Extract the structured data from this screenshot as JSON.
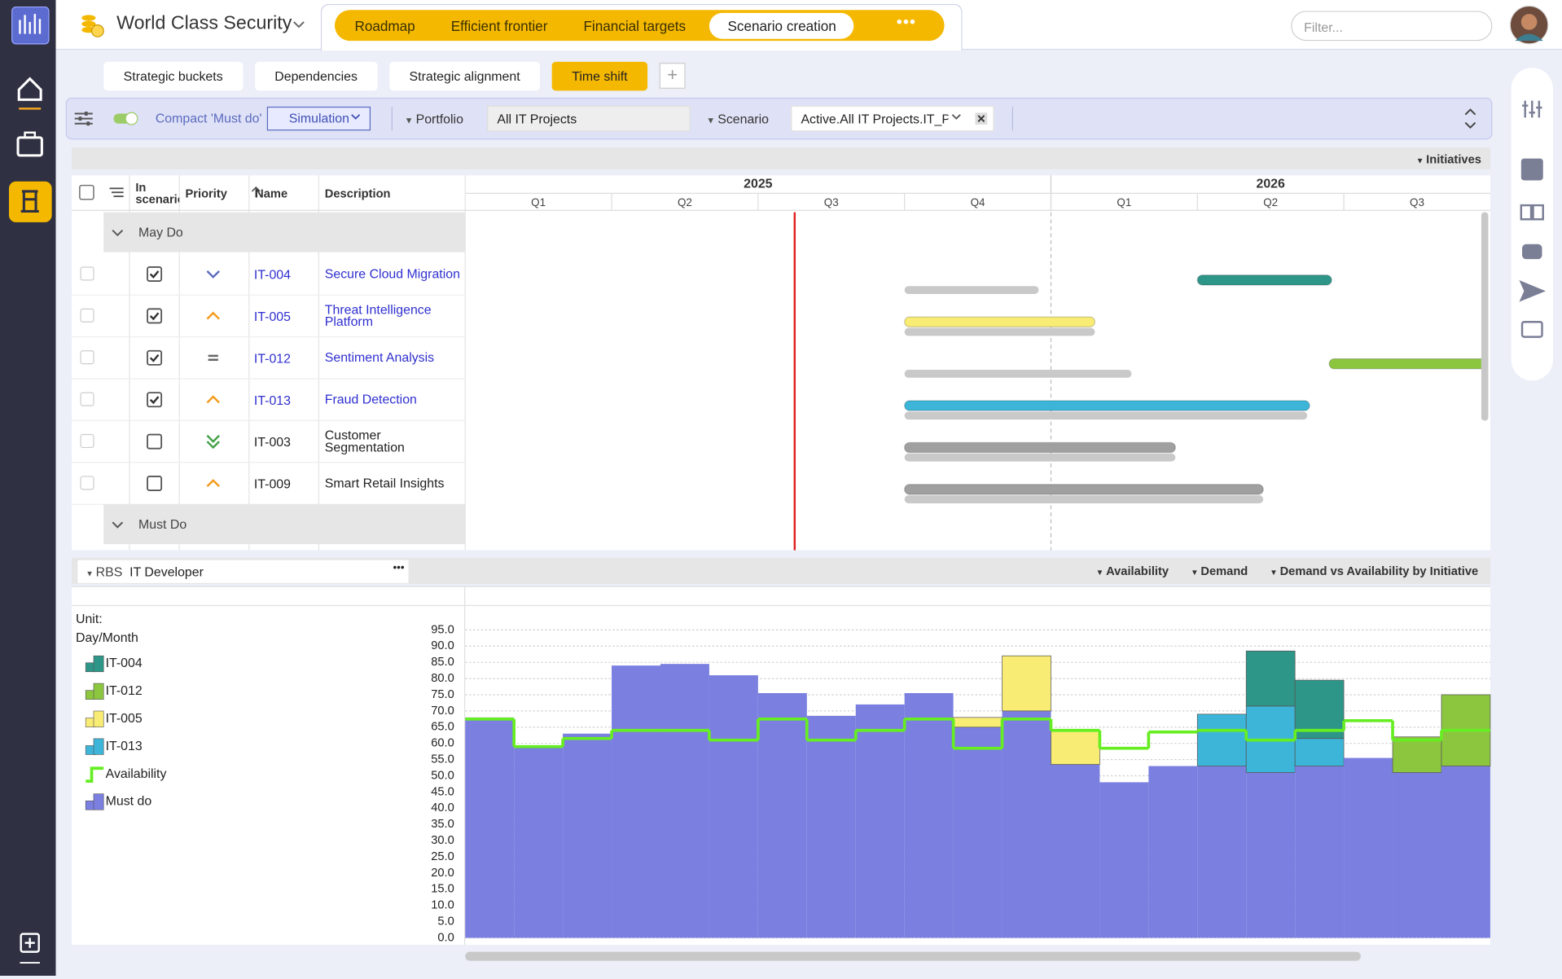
{
  "app": {
    "workspace": "World Class Security",
    "tabs": [
      "Roadmap",
      "Efficient frontier",
      "Financial targets",
      "Scenario creation"
    ],
    "active_tab": 3,
    "filter_placeholder": "Filter..."
  },
  "subtabs": [
    "Strategic buckets",
    "Dependencies",
    "Strategic alignment",
    "Time shift"
  ],
  "active_subtab": 3,
  "toolbar": {
    "compact": "Compact 'Must do'",
    "mode": "Simulation",
    "portfolio_label": "Portfolio",
    "portfolio": "All IT Projects",
    "scenario_label": "Scenario",
    "scenario": "Active.All IT Projects.IT_PM"
  },
  "gantt": {
    "view": "Initiatives",
    "columns": [
      "In scenario",
      "Priority",
      "Name",
      "Description"
    ],
    "years": [
      "2025",
      "2026"
    ],
    "quarters": [
      "Q1",
      "Q2",
      "Q3",
      "Q4",
      "Q1",
      "Q2",
      "Q3"
    ],
    "xlim": [
      0,
      21
    ],
    "today": 6.75,
    "groups": [
      {
        "name": "May Do",
        "rows": [
          {
            "id": "IT-004",
            "description": "Secure Cloud Migration",
            "in_scenario": true,
            "bar": [
              15,
              17.75
            ],
            "baseline": [
              9,
              11.75
            ],
            "color": "#2e9688"
          },
          {
            "id": "IT-005",
            "description": "Threat Intelligence Platform",
            "in_scenario": true,
            "bar": [
              9,
              12.9
            ],
            "baseline": [
              9,
              12.9
            ],
            "color": "#f8ec74"
          },
          {
            "id": "IT-012",
            "description": "Sentiment Analysis",
            "in_scenario": true,
            "bar": [
              17.7,
              21.5
            ],
            "baseline": [
              9,
              13.65
            ],
            "color": "#8cc63f"
          },
          {
            "id": "IT-013",
            "description": "Fraud Detection",
            "in_scenario": true,
            "bar": [
              9,
              17.3
            ],
            "baseline": [
              9,
              17.25
            ],
            "color": "#3db5d8"
          },
          {
            "id": "IT-003",
            "description": "Customer Segmentation",
            "in_scenario": false,
            "bar": [
              9,
              14.55
            ],
            "baseline": [
              9,
              14.55
            ],
            "color": "#a0a0a0"
          },
          {
            "id": "IT-009",
            "description": "Smart Retail Insights",
            "in_scenario": false,
            "bar": [
              9,
              16.35
            ],
            "baseline": [
              9,
              16.35
            ],
            "color": "#a0a0a0"
          }
        ]
      },
      {
        "name": "Must Do",
        "rows": []
      }
    ]
  },
  "resource_panel": {
    "rbs_label": "RBS",
    "rbs": "IT Developer",
    "views": [
      "Availability",
      "Demand",
      "Demand vs Availability by Initiative"
    ]
  },
  "chart_data": {
    "type": "bar",
    "stacked": true,
    "unit_label": "Unit:",
    "unit": "Day/Month",
    "categories": [
      null,
      null,
      null,
      null,
      null,
      null,
      null,
      null,
      null,
      null,
      null,
      null,
      null,
      null,
      null,
      null,
      null,
      null,
      null,
      null,
      null
    ],
    "ylim": [
      0,
      95
    ],
    "yticks": [
      {
        "value": 0,
        "label": "0.0"
      },
      {
        "value": 5,
        "label": "5.0"
      },
      {
        "value": 10,
        "label": "10.0"
      },
      {
        "value": 15,
        "label": "15.0"
      },
      {
        "value": 20,
        "label": "20.0"
      },
      {
        "value": 25,
        "label": "25.0"
      },
      {
        "value": 30,
        "label": "30.0"
      },
      {
        "value": 35,
        "label": "35.0"
      },
      {
        "value": 40,
        "label": "40.0"
      },
      {
        "value": 45,
        "label": "45.0"
      },
      {
        "value": 50,
        "label": "50.0"
      },
      {
        "value": 55,
        "label": "55.0"
      },
      {
        "value": 60,
        "label": "60.0"
      },
      {
        "value": 65,
        "label": "65.0"
      },
      {
        "value": 70,
        "label": "70.0"
      },
      {
        "value": 75,
        "label": "75.0"
      },
      {
        "value": 80,
        "label": "80.0"
      },
      {
        "value": 85,
        "label": "85.0"
      },
      {
        "value": 90,
        "label": "90.0"
      },
      {
        "value": 95,
        "label": "95.0"
      }
    ],
    "grid": true,
    "series": [
      {
        "name": "IT-004",
        "color": "#2e9688",
        "values": [
          null,
          null,
          null,
          null,
          null,
          null,
          null,
          null,
          null,
          null,
          null,
          null,
          null,
          null,
          null,
          null,
          17,
          18,
          null,
          null,
          null
        ]
      },
      {
        "name": "IT-012",
        "color": "#8cc63f",
        "values": [
          null,
          null,
          null,
          null,
          null,
          null,
          null,
          null,
          null,
          null,
          null,
          null,
          null,
          null,
          null,
          null,
          null,
          null,
          null,
          11,
          22
        ]
      },
      {
        "name": "IT-005",
        "color": "#f8ec74",
        "values": [
          null,
          null,
          null,
          null,
          null,
          null,
          null,
          null,
          null,
          null,
          3,
          17,
          10.5,
          null,
          null,
          null,
          null,
          null,
          null,
          null,
          null
        ]
      },
      {
        "name": "IT-013",
        "color": "#3db5d8",
        "values": [
          null,
          null,
          null,
          null,
          null,
          null,
          null,
          null,
          null,
          null,
          null,
          null,
          null,
          null,
          null,
          16,
          20.5,
          8.5,
          null,
          null,
          null
        ]
      },
      {
        "name": "Availability",
        "color": "#66ee22",
        "type": "step",
        "values": [
          67.5,
          59,
          61.5,
          64,
          64,
          61,
          67.5,
          61,
          64,
          67.5,
          58.5,
          67.5,
          64,
          58.5,
          63.5,
          64,
          61,
          64,
          67,
          61,
          64
        ]
      },
      {
        "name": "Must do",
        "color": "#7a7fe0",
        "values": [
          68,
          59,
          63,
          84,
          84.5,
          81,
          75.5,
          68.5,
          72,
          75.5,
          65,
          70,
          53.5,
          48,
          53,
          53,
          51,
          53,
          55.5,
          51,
          53
        ]
      }
    ]
  }
}
